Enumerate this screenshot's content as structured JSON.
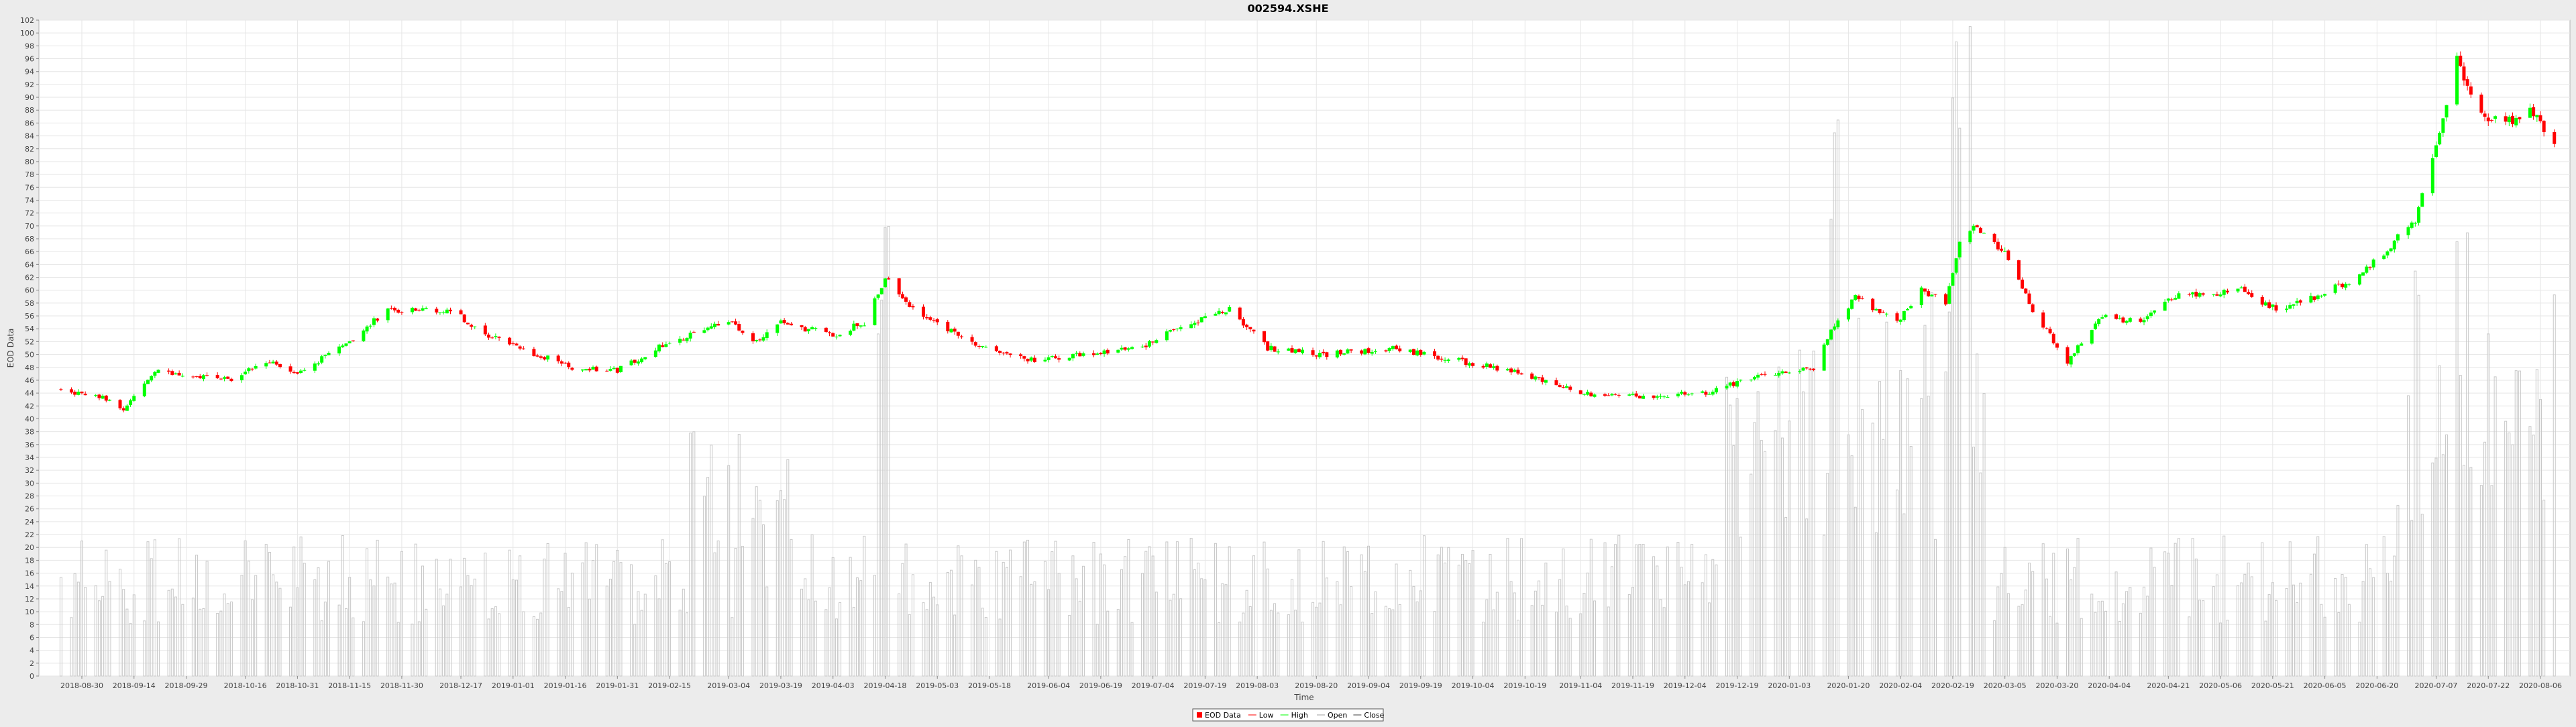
{
  "chart_data": {
    "type": "candlestick",
    "title": "002594.XSHE",
    "xlabel": "Time",
    "ylabel": "EOD Data",
    "ylim": [
      0,
      102
    ],
    "grid": true,
    "legend_position": "bottom-center",
    "x_tick_labels": [
      "2018-08-30",
      "2018-09-14",
      "2018-09-29",
      "2018-10-16",
      "2018-10-31",
      "2018-11-15",
      "2018-11-30",
      "2018-12-17",
      "2019-01-01",
      "2019-01-16",
      "2019-01-31",
      "2019-02-15",
      "2019-03-04",
      "2019-03-19",
      "2019-04-03",
      "2019-04-18",
      "2019-05-03",
      "2019-05-18",
      "2019-06-04",
      "2019-06-19",
      "2019-07-04",
      "2019-07-19",
      "2019-08-03",
      "2019-08-20",
      "2019-09-04",
      "2019-09-19",
      "2019-10-04",
      "2019-10-19",
      "2019-11-04",
      "2019-11-19",
      "2019-12-04",
      "2019-12-19",
      "2020-01-03",
      "2020-01-20",
      "2020-02-04",
      "2020-02-19",
      "2020-03-05",
      "2020-03-20",
      "2020-04-04",
      "2020-04-21",
      "2020-05-06",
      "2020-05-21",
      "2020-06-05",
      "2020-06-20",
      "2020-07-07",
      "2020-07-22",
      "2020-08-06"
    ],
    "legend": [
      "EOD Data",
      "Low",
      "High",
      "Open",
      "Close"
    ],
    "colors": {
      "up": "#00ff00",
      "down": "#ff0000",
      "volume": "#cccccc",
      "grid": "#e6e6e6",
      "plot_bg": "#ffffff"
    },
    "price_anchors": [
      {
        "x": "2018-08-24",
        "close": 44.5
      },
      {
        "x": "2018-09-04",
        "close": 43.5
      },
      {
        "x": "2018-09-11",
        "close": 41.5
      },
      {
        "x": "2018-09-21",
        "close": 47.5
      },
      {
        "x": "2018-10-12",
        "close": 46
      },
      {
        "x": "2018-10-22",
        "close": 49
      },
      {
        "x": "2018-10-31",
        "close": 47
      },
      {
        "x": "2018-11-15",
        "close": 52
      },
      {
        "x": "2018-11-26",
        "close": 57
      },
      {
        "x": "2018-12-14",
        "close": 57
      },
      {
        "x": "2018-12-24",
        "close": 53
      },
      {
        "x": "2019-01-08",
        "close": 50
      },
      {
        "x": "2019-01-18",
        "close": 48
      },
      {
        "x": "2019-01-31",
        "close": 47.5
      },
      {
        "x": "2019-02-15",
        "close": 52
      },
      {
        "x": "2019-03-04",
        "close": 55
      },
      {
        "x": "2019-03-12",
        "close": 52
      },
      {
        "x": "2019-03-19",
        "close": 55
      },
      {
        "x": "2019-04-03",
        "close": 53
      },
      {
        "x": "2019-04-12",
        "close": 55
      },
      {
        "x": "2019-04-18",
        "close": 62
      },
      {
        "x": "2019-04-26",
        "close": 57
      },
      {
        "x": "2019-05-13",
        "close": 52
      },
      {
        "x": "2019-05-31",
        "close": 49
      },
      {
        "x": "2019-06-14",
        "close": 50
      },
      {
        "x": "2019-07-01",
        "close": 51
      },
      {
        "x": "2019-07-10",
        "close": 54
      },
      {
        "x": "2019-07-26",
        "close": 57
      },
      {
        "x": "2019-08-06",
        "close": 51
      },
      {
        "x": "2019-08-22",
        "close": 50
      },
      {
        "x": "2019-09-10",
        "close": 51
      },
      {
        "x": "2019-10-10",
        "close": 48
      },
      {
        "x": "2019-10-25",
        "close": 46
      },
      {
        "x": "2019-11-04",
        "close": 44
      },
      {
        "x": "2019-11-20",
        "close": 43.5
      },
      {
        "x": "2019-12-10",
        "close": 44
      },
      {
        "x": "2019-12-27",
        "close": 47
      },
      {
        "x": "2020-01-10",
        "close": 48
      },
      {
        "x": "2020-01-15",
        "close": 54
      },
      {
        "x": "2020-01-22",
        "close": 59
      },
      {
        "x": "2020-02-03",
        "close": 55
      },
      {
        "x": "2020-02-10",
        "close": 60
      },
      {
        "x": "2020-02-17",
        "close": 58
      },
      {
        "x": "2020-02-21",
        "close": 67
      },
      {
        "x": "2020-02-26",
        "close": 70
      },
      {
        "x": "2020-03-06",
        "close": 65
      },
      {
        "x": "2020-03-13",
        "close": 57
      },
      {
        "x": "2020-03-23",
        "close": 49
      },
      {
        "x": "2020-04-02",
        "close": 56
      },
      {
        "x": "2020-04-13",
        "close": 55
      },
      {
        "x": "2020-04-23",
        "close": 59
      },
      {
        "x": "2020-05-12",
        "close": 60
      },
      {
        "x": "2020-05-22",
        "close": 57
      },
      {
        "x": "2020-06-02",
        "close": 59
      },
      {
        "x": "2020-06-15",
        "close": 62
      },
      {
        "x": "2020-06-24",
        "close": 67
      },
      {
        "x": "2020-07-01",
        "close": 71
      },
      {
        "x": "2020-07-06",
        "close": 80
      },
      {
        "x": "2020-07-13",
        "close": 96
      },
      {
        "x": "2020-07-20",
        "close": 87
      },
      {
        "x": "2020-07-27",
        "close": 86
      },
      {
        "x": "2020-08-03",
        "close": 88
      },
      {
        "x": "2020-08-10",
        "close": 83
      }
    ]
  }
}
